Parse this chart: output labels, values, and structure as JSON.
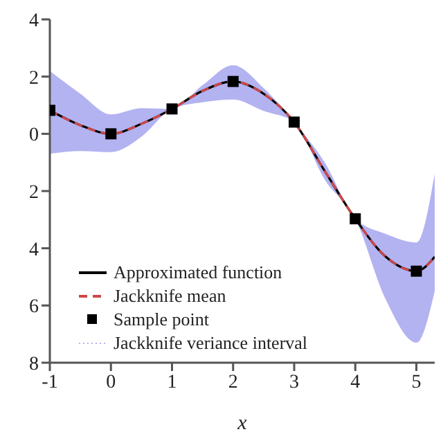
{
  "chart_data": {
    "type": "line",
    "xlabel": "x",
    "xlim": [
      -1,
      5.3
    ],
    "xticks": [
      -1,
      0,
      1,
      2,
      3,
      4,
      5
    ],
    "ylim": [
      -8,
      4
    ],
    "yticks": [
      {
        "value": -8,
        "label": "8"
      },
      {
        "value": -6,
        "label": "6"
      },
      {
        "value": -4,
        "label": "4"
      },
      {
        "value": -2,
        "label": "2"
      },
      0,
      2,
      4
    ],
    "grid": false,
    "legend": "bottom left",
    "series": [
      {
        "name": "Jackknife veriance interval",
        "type": "area",
        "color": "#b3b3f2",
        "line_style": "dotted",
        "x": [
          -1,
          -0.5,
          0,
          0.5,
          1,
          1.5,
          2,
          2.5,
          3,
          3.5,
          4,
          4.5,
          5,
          5.3
        ],
        "values": [
          null,
          null,
          null,
          null,
          null,
          null,
          null,
          null,
          null,
          null,
          null,
          null,
          null,
          null
        ],
        "lower": [
          -0.7,
          -0.6,
          -0.64,
          -0.1,
          0.87,
          1.1,
          1.2,
          0.8,
          0.41,
          -1.6,
          -2.97,
          -5.8,
          -7.3,
          -5.5
        ],
        "upper": [
          2.2,
          1.4,
          0.68,
          0.9,
          0.87,
          1.7,
          2.4,
          1.6,
          0.41,
          -1.0,
          -2.97,
          -3.5,
          -3.8,
          -1.4
        ]
      },
      {
        "name": "Approximated function",
        "color": "#000000",
        "line_style": "solid",
        "marker": "none",
        "x": [
          -1,
          -0.5,
          0,
          0.5,
          1,
          1.5,
          2,
          2.5,
          3,
          3.5,
          4,
          4.5,
          5,
          5.3
        ],
        "values": [
          0.82,
          0.3,
          0,
          0.35,
          0.87,
          1.5,
          1.83,
          1.4,
          0.41,
          -1.3,
          -2.97,
          -4.3,
          -4.8,
          -4.3
        ]
      },
      {
        "name": "Jackknife mean",
        "color": "#d04848",
        "line_style": "dashed",
        "marker": "none",
        "x": [
          -1,
          -0.5,
          0,
          0.5,
          1,
          1.5,
          2,
          2.5,
          3,
          3.5,
          4,
          4.5,
          5,
          5.3
        ],
        "values": [
          0.82,
          0.3,
          0,
          0.35,
          0.87,
          1.5,
          1.83,
          1.4,
          0.41,
          -1.3,
          -2.97,
          -4.3,
          -4.8,
          -4.3
        ]
      },
      {
        "name": "Sample point",
        "type": "scatter",
        "color": "#000000",
        "marker": "square",
        "x": [
          -1,
          0,
          1,
          2,
          3,
          4,
          5
        ],
        "values": [
          0.82,
          0,
          0.87,
          1.83,
          0.41,
          -2.97,
          -4.8
        ]
      }
    ]
  }
}
